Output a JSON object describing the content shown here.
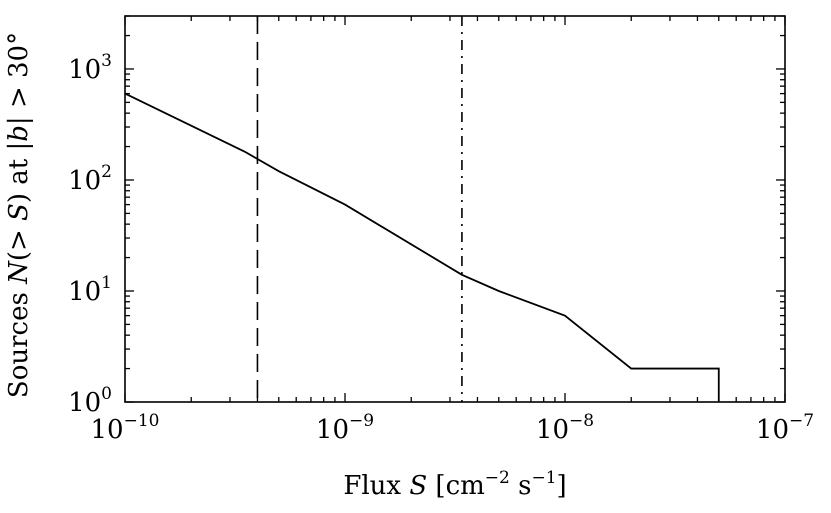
{
  "chart_data": {
    "type": "line",
    "xscale": "log",
    "yscale": "log",
    "xlim": [
      1e-10,
      1e-07
    ],
    "ylim": [
      1,
      3000
    ],
    "xlabel": "Flux S [cm^-2 s^-1]",
    "ylabel": "Sources N(> S) at |b| > 30°",
    "grid": false,
    "x_ticks": [
      {
        "value": 1e-10,
        "base": "10",
        "exp": "−10"
      },
      {
        "value": 1e-09,
        "base": "10",
        "exp": "−9"
      },
      {
        "value": 1e-08,
        "base": "10",
        "exp": "−8"
      },
      {
        "value": 1e-07,
        "base": "10",
        "exp": "−7"
      }
    ],
    "y_ticks": [
      {
        "value": 1,
        "base": "10",
        "exp": "0"
      },
      {
        "value": 10,
        "base": "10",
        "exp": "1"
      },
      {
        "value": 100,
        "base": "10",
        "exp": "2"
      },
      {
        "value": 1000,
        "base": "10",
        "exp": "3"
      }
    ],
    "series": [
      {
        "x": [
          1e-10,
          3.5e-10,
          5e-10,
          1e-09,
          3.4e-09,
          5e-09,
          1e-08,
          2e-08,
          5e-08,
          5e-08
        ],
        "y": [
          600,
          180,
          120,
          60,
          14,
          10,
          6,
          2,
          2,
          1
        ],
        "color": "#000000",
        "style": "solid"
      }
    ],
    "vlines": [
      {
        "x": 4e-10,
        "style": "dashed"
      },
      {
        "x": 3.4e-09,
        "style": "dashdot"
      }
    ]
  },
  "labels": {
    "x_prefix": "Flux ",
    "x_var": "S",
    "x_units_a": " [cm",
    "x_sup_a": "−2",
    "x_units_b": " s",
    "x_sup_b": "−1",
    "x_units_c": "]",
    "y_prefix": "Sources ",
    "y_var_n": "N",
    "y_mid_a": "(> ",
    "y_var_s": "S",
    "y_mid_b": ") at |",
    "y_var_b": "b",
    "y_suffix": "| > 30°"
  }
}
